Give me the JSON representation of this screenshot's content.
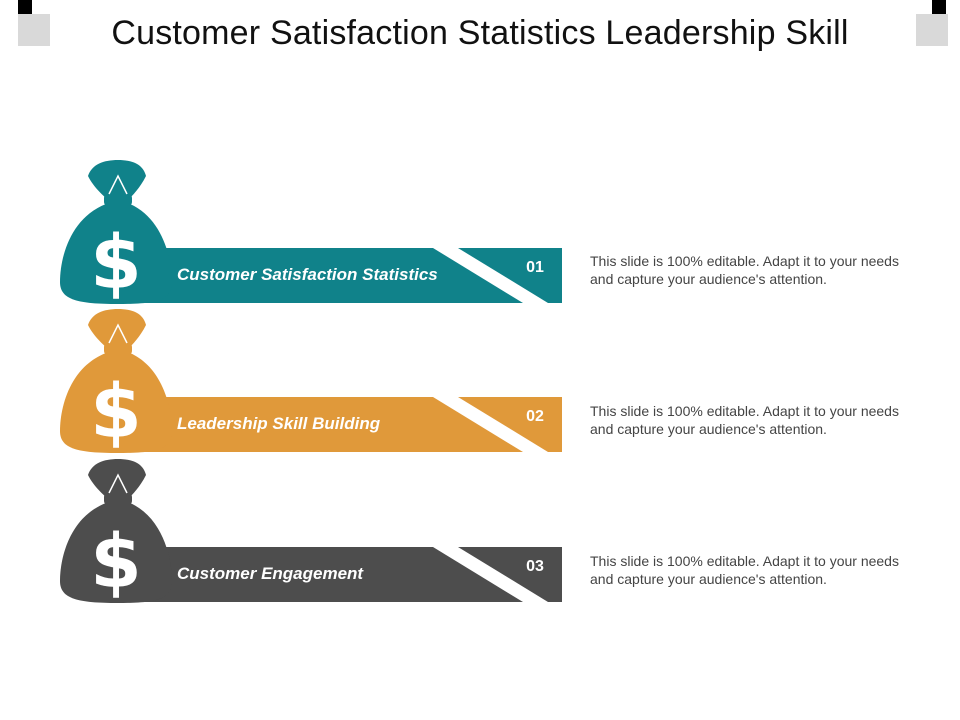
{
  "title": "Customer Satisfaction Statistics Leadership Skill",
  "dollar_symbol": "$",
  "items": [
    {
      "number": "01",
      "label": "Customer Satisfaction Statistics",
      "description": "This slide is 100% editable. Adapt it to your needs and capture your audience's attention.",
      "color": "#10828A",
      "icon": "money-bag-icon"
    },
    {
      "number": "02",
      "label": "Leadership Skill Building",
      "description": "This slide is 100% editable. Adapt it to your needs and capture your audience's attention.",
      "color": "#E0993A",
      "icon": "money-bag-icon"
    },
    {
      "number": "03",
      "label": "Customer Engagement",
      "description": "This slide is 100% editable. Adapt it to your needs and capture your audience's attention.",
      "color": "#4D4D4D",
      "icon": "money-bag-icon"
    }
  ]
}
